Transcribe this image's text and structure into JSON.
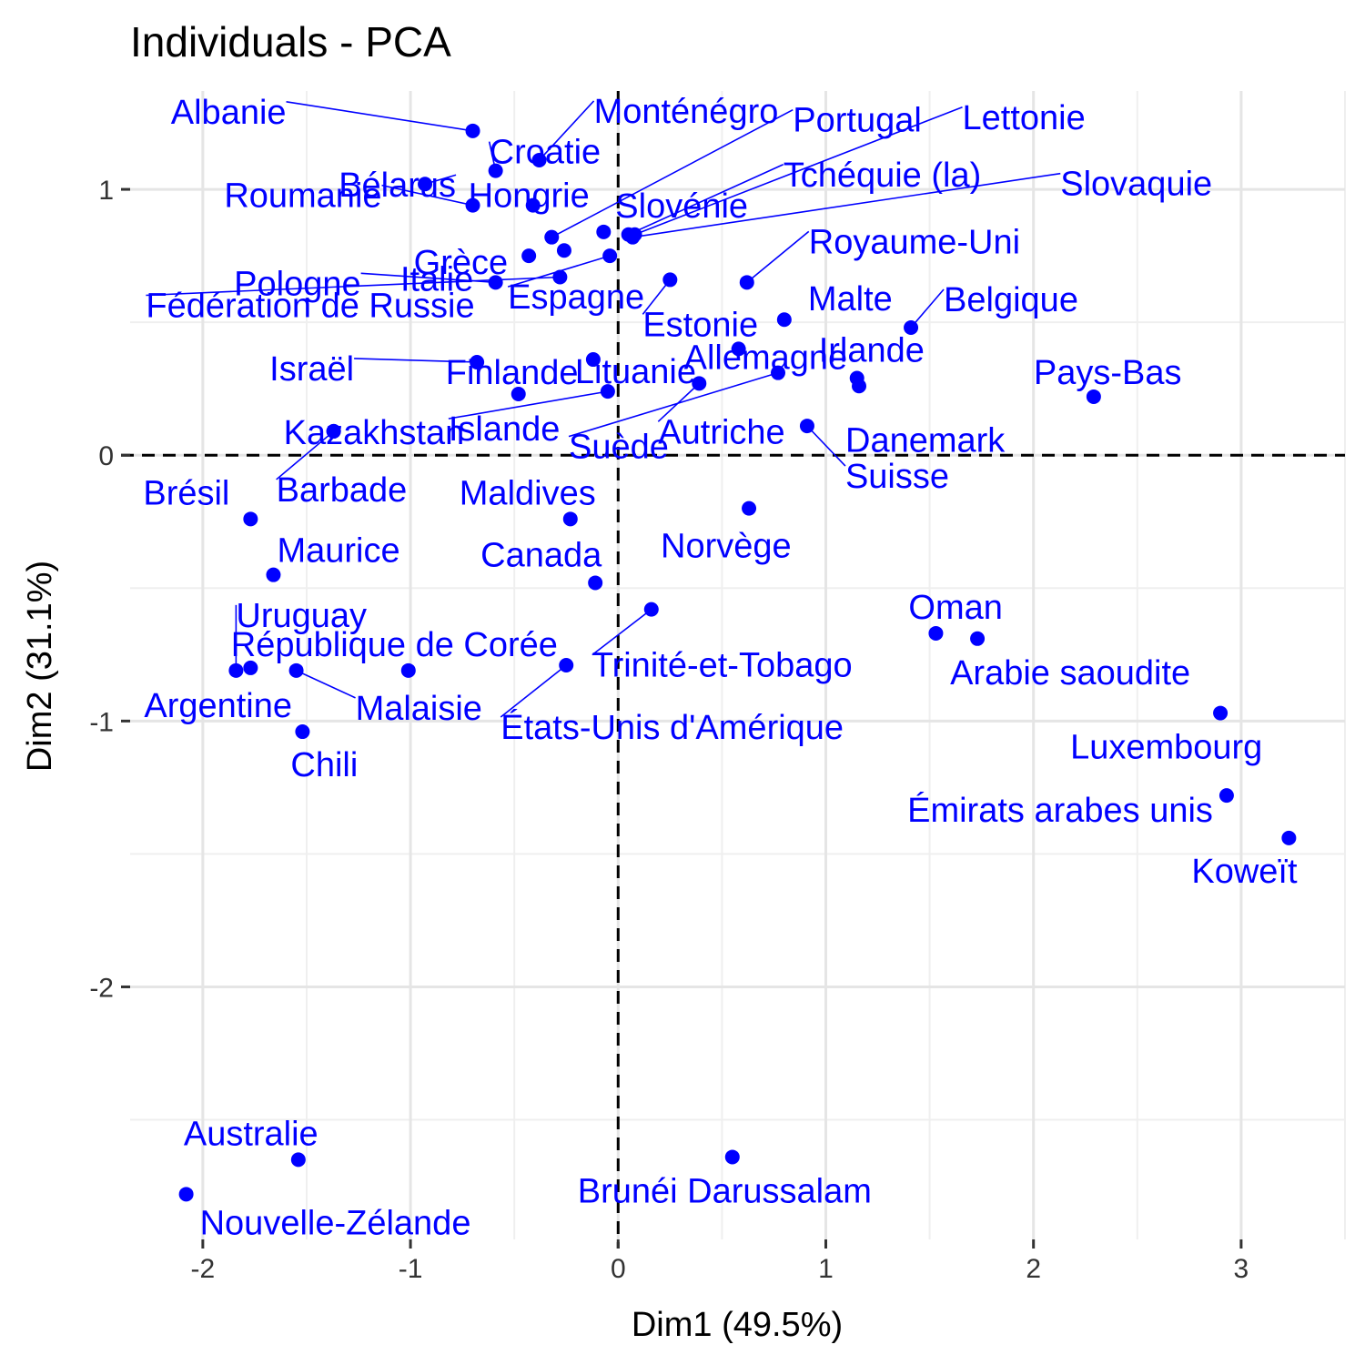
{
  "chart_data": {
    "type": "scatter",
    "title": "Individuals - PCA",
    "xlabel": "Dim1 (49.5%)",
    "ylabel": "Dim2 (31.1%)",
    "xlim": [
      -2.35,
      3.5
    ],
    "ylim": [
      -2.95,
      1.37
    ],
    "xticks": [
      -2,
      -1,
      0,
      1,
      2,
      3
    ],
    "yticks": [
      -2,
      -1,
      0,
      1
    ],
    "xtick_labels": [
      "-2",
      "-1",
      "0",
      "1",
      "2",
      "3"
    ],
    "ytick_labels": [
      "-2",
      "-1",
      "0",
      "1"
    ],
    "grid": true,
    "reference_lines": {
      "x": 0,
      "y": 0,
      "style": "dashed"
    },
    "color": "#0000ff",
    "points": [
      {
        "label": "Albanie",
        "x": -0.7,
        "y": 1.22
      },
      {
        "label": "Bélarus",
        "x": -0.93,
        "y": 1.02
      },
      {
        "label": "Croatie",
        "x": -0.59,
        "y": 1.07
      },
      {
        "label": "Monténégro",
        "x": -0.38,
        "y": 1.11
      },
      {
        "label": "Portugal",
        "x": -0.32,
        "y": 0.82
      },
      {
        "label": "Lettonie",
        "x": 0.08,
        "y": 0.83
      },
      {
        "label": "Roumanie",
        "x": -0.7,
        "y": 0.94
      },
      {
        "label": "Hongrie",
        "x": -0.41,
        "y": 0.94
      },
      {
        "label": "Tchéquie (la)",
        "x": 0.05,
        "y": 0.83
      },
      {
        "label": "Slovaquie",
        "x": 0.07,
        "y": 0.82
      },
      {
        "label": "Slovénie",
        "x": -0.07,
        "y": 0.84
      },
      {
        "label": "Pologne",
        "x": -0.59,
        "y": 0.65
      },
      {
        "label": "Grèce",
        "x": -0.43,
        "y": 0.75
      },
      {
        "label": "Royaume-Uni",
        "x": 0.62,
        "y": 0.65
      },
      {
        "label": "Fédération de Russie",
        "x": -0.28,
        "y": 0.67
      },
      {
        "label": "Italie",
        "x": -0.26,
        "y": 0.77
      },
      {
        "label": "Espagne",
        "x": -0.04,
        "y": 0.75
      },
      {
        "label": "Estonie",
        "x": 0.25,
        "y": 0.66
      },
      {
        "label": "Malte",
        "x": 0.8,
        "y": 0.51
      },
      {
        "label": "Belgique",
        "x": 1.41,
        "y": 0.48
      },
      {
        "label": "Israël",
        "x": -0.68,
        "y": 0.35
      },
      {
        "label": "Finlande",
        "x": -0.48,
        "y": 0.23
      },
      {
        "label": "Lituanie",
        "x": -0.12,
        "y": 0.36
      },
      {
        "label": "Allemagne",
        "x": 0.58,
        "y": 0.4
      },
      {
        "label": "Irlande",
        "x": 1.15,
        "y": 0.29
      },
      {
        "label": "Pays-Bas",
        "x": 2.29,
        "y": 0.22
      },
      {
        "label": "Kazakhstan",
        "x": -1.37,
        "y": 0.09
      },
      {
        "label": "Islande",
        "x": -0.05,
        "y": 0.24
      },
      {
        "label": "Suède",
        "x": 0.77,
        "y": 0.31
      },
      {
        "label": "Autriche",
        "x": 0.39,
        "y": 0.27
      },
      {
        "label": "Danemark",
        "x": 1.16,
        "y": 0.26
      },
      {
        "label": "Suisse",
        "x": 0.91,
        "y": 0.11
      },
      {
        "label": "Barbade",
        "x": -1.37,
        "y": 0.09
      },
      {
        "label": "Brésil",
        "x": -1.77,
        "y": -0.24
      },
      {
        "label": "Maldives",
        "x": -0.23,
        "y": -0.24
      },
      {
        "label": "Norvège",
        "x": 0.63,
        "y": -0.2
      },
      {
        "label": "Maurice",
        "x": -1.66,
        "y": -0.45
      },
      {
        "label": "Canada",
        "x": -0.11,
        "y": -0.48
      },
      {
        "label": "Uruguay",
        "x": -1.84,
        "y": -0.81
      },
      {
        "label": "Oman",
        "x": 1.53,
        "y": -0.67
      },
      {
        "label": "République de Corée",
        "x": -1.01,
        "y": -0.81
      },
      {
        "label": "Trinité-et-Tobago",
        "x": 0.16,
        "y": -0.58
      },
      {
        "label": "Arabie saoudite",
        "x": 1.73,
        "y": -0.69
      },
      {
        "label": "Argentine",
        "x": -1.77,
        "y": -0.8
      },
      {
        "label": "Malaisie",
        "x": -1.55,
        "y": -0.81
      },
      {
        "label": "États-Unis d'Amérique",
        "x": -0.25,
        "y": -0.79
      },
      {
        "label": "Luxembourg",
        "x": 2.9,
        "y": -0.97
      },
      {
        "label": "Chili",
        "x": -1.52,
        "y": -1.04
      },
      {
        "label": "Émirats arabes unis",
        "x": 2.93,
        "y": -1.28
      },
      {
        "label": "Koweït",
        "x": 3.23,
        "y": -1.44
      },
      {
        "label": "Australie",
        "x": -1.54,
        "y": -2.65
      },
      {
        "label": "Brunéi Darussalam",
        "x": 0.55,
        "y": -2.64
      },
      {
        "label": "Nouvelle-Zélande",
        "x": -2.08,
        "y": -2.78
      }
    ]
  }
}
